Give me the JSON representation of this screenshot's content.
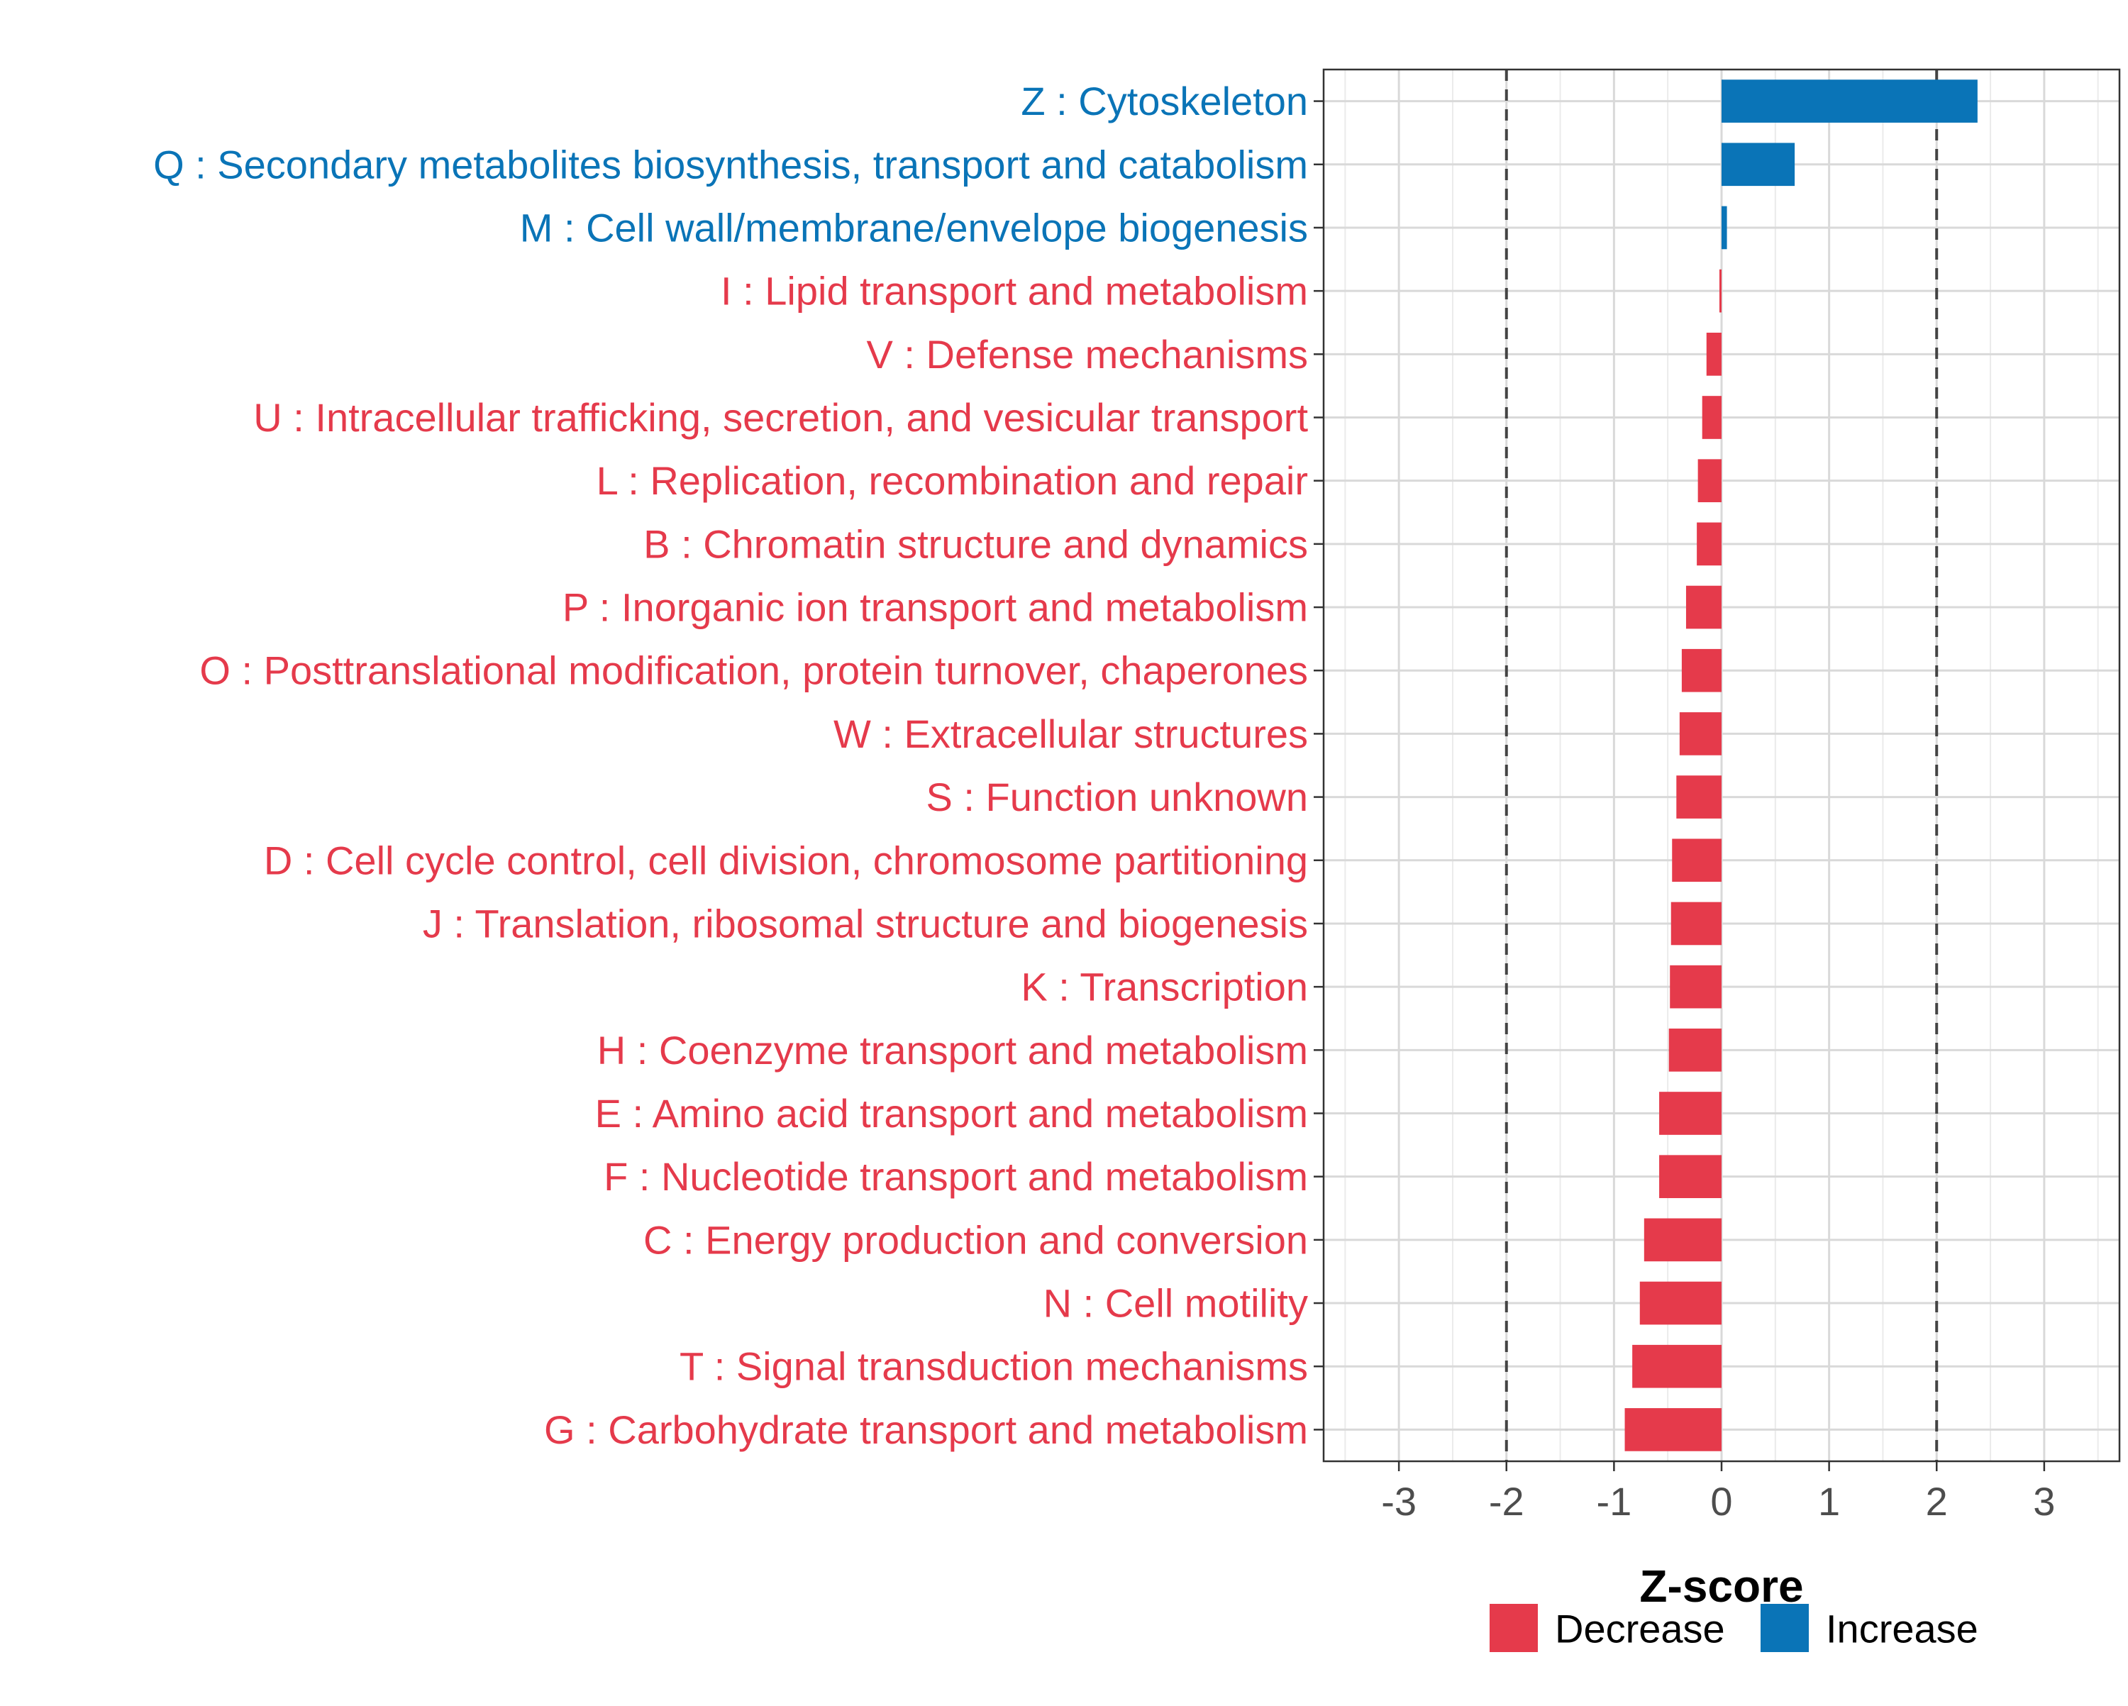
{
  "chart_data": {
    "type": "bar",
    "orientation": "horizontal",
    "xlabel": "Z-score",
    "xlim": [
      -3.7,
      3.7
    ],
    "xticks": [
      -3,
      -2,
      -1,
      0,
      1,
      2,
      3
    ],
    "reference_lines": [
      -2,
      2
    ],
    "grid": true,
    "legend_position": "bottom",
    "colors": {
      "Decrease": "#e53a4b",
      "Increase": "#0a74b7"
    },
    "legend": [
      {
        "label": "Decrease",
        "color": "#e53a4b"
      },
      {
        "label": "Increase",
        "color": "#0a74b7"
      }
    ],
    "categories": [
      "Z : Cytoskeleton",
      "Q : Secondary metabolites biosynthesis, transport and catabolism",
      "M : Cell wall/membrane/envelope biogenesis",
      "I : Lipid transport and metabolism",
      "V : Defense mechanisms",
      "U : Intracellular trafficking, secretion, and vesicular transport",
      "L : Replication, recombination and repair",
      "B : Chromatin structure and dynamics",
      "P : Inorganic ion transport and metabolism",
      "O : Posttranslational modification, protein turnover, chaperones",
      "W : Extracellular structures",
      "S : Function unknown",
      "D : Cell cycle control, cell division, chromosome partitioning",
      "J : Translation, ribosomal structure and biogenesis",
      "K : Transcription",
      "H : Coenzyme transport and metabolism",
      "E : Amino acid transport and metabolism",
      "F : Nucleotide transport and metabolism",
      "C : Energy production and conversion",
      "N : Cell motility",
      "T : Signal transduction mechanisms",
      "G : Carbohydrate transport and metabolism"
    ],
    "values": [
      2.38,
      0.68,
      0.05,
      -0.02,
      -0.14,
      -0.18,
      -0.22,
      -0.23,
      -0.33,
      -0.37,
      -0.39,
      -0.42,
      -0.46,
      -0.47,
      -0.48,
      -0.49,
      -0.58,
      -0.58,
      -0.72,
      -0.76,
      -0.83,
      -0.9
    ],
    "groups": [
      "Increase",
      "Increase",
      "Increase",
      "Decrease",
      "Decrease",
      "Decrease",
      "Decrease",
      "Decrease",
      "Decrease",
      "Decrease",
      "Decrease",
      "Decrease",
      "Decrease",
      "Decrease",
      "Decrease",
      "Decrease",
      "Decrease",
      "Decrease",
      "Decrease",
      "Decrease",
      "Decrease",
      "Decrease"
    ]
  }
}
